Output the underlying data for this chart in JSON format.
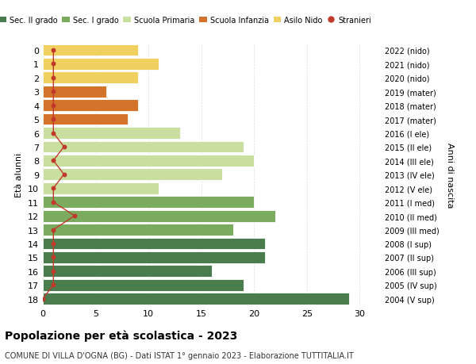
{
  "ages": [
    18,
    17,
    16,
    15,
    14,
    13,
    12,
    11,
    10,
    9,
    8,
    7,
    6,
    5,
    4,
    3,
    2,
    1,
    0
  ],
  "years": [
    "2004 (V sup)",
    "2005 (IV sup)",
    "2006 (III sup)",
    "2007 (II sup)",
    "2008 (I sup)",
    "2009 (III med)",
    "2010 (II med)",
    "2011 (I med)",
    "2012 (V ele)",
    "2013 (IV ele)",
    "2014 (III ele)",
    "2015 (II ele)",
    "2016 (I ele)",
    "2017 (mater)",
    "2018 (mater)",
    "2019 (mater)",
    "2020 (nido)",
    "2021 (nido)",
    "2022 (nido)"
  ],
  "values": [
    29,
    19,
    16,
    21,
    21,
    18,
    22,
    20,
    11,
    17,
    20,
    19,
    13,
    8,
    9,
    6,
    9,
    11,
    9
  ],
  "stranieri": [
    0,
    1,
    1,
    1,
    1,
    1,
    3,
    1,
    1,
    2,
    1,
    2,
    1,
    1,
    1,
    1,
    1,
    1,
    1
  ],
  "bar_colors": [
    "#4a7c4e",
    "#4a7c4e",
    "#4a7c4e",
    "#4a7c4e",
    "#4a7c4e",
    "#7aab5e",
    "#7aab5e",
    "#7aab5e",
    "#c8dfa0",
    "#c8dfa0",
    "#c8dfa0",
    "#c8dfa0",
    "#c8dfa0",
    "#d4732a",
    "#d4732a",
    "#d4732a",
    "#f0d060",
    "#f0d060",
    "#f0d060"
  ],
  "legend_labels": [
    "Sec. II grado",
    "Sec. I grado",
    "Scuola Primaria",
    "Scuola Infanzia",
    "Asilo Nido",
    "Stranieri"
  ],
  "legend_colors": [
    "#4a7c4e",
    "#7aab5e",
    "#c8dfa0",
    "#d4732a",
    "#f0d060",
    "#c0392b"
  ],
  "stranieri_color": "#c0392b",
  "ylabel_left": "Età alunni",
  "ylabel_right": "Anni di nascita",
  "xlim": [
    0,
    32
  ],
  "title": "Popolazione per età scolastica - 2023",
  "subtitle": "COMUNE DI VILLA D'OGNA (BG) - Dati ISTAT 1° gennaio 2023 - Elaborazione TUTTITALIA.IT",
  "bg_color": "#ffffff",
  "grid_color": "#dddddd"
}
